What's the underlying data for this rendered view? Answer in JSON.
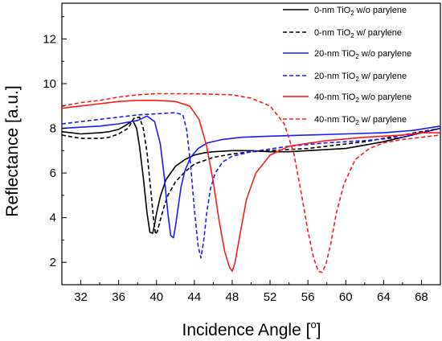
{
  "chart_data": {
    "type": "line",
    "xlabel": "Incidence Angle [",
    "xlabel_unit": "o",
    "xlabel_close": "]",
    "ylabel": "Reflectance [a.u.]",
    "xlim": [
      30,
      70
    ],
    "ylim": [
      1,
      13.6
    ],
    "xticks": [
      32,
      36,
      40,
      44,
      48,
      52,
      56,
      60,
      64,
      68
    ],
    "yticks": [
      2,
      4,
      6,
      8,
      10,
      12
    ],
    "grid": false,
    "legend_position": "top-right",
    "series": [
      {
        "label_pre": "0-nm TiO",
        "label_sub": "2",
        "label_post": " w/o parylene",
        "color": "#000000",
        "dash": "solid",
        "x": [
          30,
          32,
          34,
          35,
          36,
          36.8,
          37.5,
          37.9,
          38.2,
          38.6,
          39.0,
          39.3,
          39.6,
          39.8,
          40.0,
          40.4,
          41.0,
          42.0,
          43.0,
          44.0,
          45.0,
          46.0,
          48.0,
          50.0,
          52.0,
          54.0,
          56.0,
          58.0,
          60.0,
          62.0,
          64.0,
          66.0,
          68.0,
          70.0
        ],
        "y": [
          7.85,
          7.75,
          7.8,
          7.85,
          7.95,
          8.15,
          8.35,
          8.0,
          7.2,
          5.8,
          4.2,
          3.35,
          3.3,
          3.7,
          4.2,
          4.95,
          5.7,
          6.3,
          6.6,
          6.8,
          6.9,
          6.95,
          7.0,
          7.0,
          6.95,
          6.95,
          7.0,
          7.05,
          7.1,
          7.25,
          7.4,
          7.6,
          7.8,
          8.0
        ]
      },
      {
        "label_pre": "0-nm TiO",
        "label_sub": "2",
        "label_post": " w/ parylene",
        "color": "#000000",
        "dash": "dashed",
        "x": [
          30,
          32,
          34,
          35,
          36,
          37.0,
          37.6,
          38.2,
          38.6,
          39.0,
          39.4,
          39.7,
          39.9,
          40.1,
          40.4,
          40.8,
          41.2,
          42.0,
          43.0,
          44.0,
          46.0,
          48.0,
          50.0,
          52.0,
          54.0,
          56.0,
          58.0,
          60.0,
          62.0,
          64.0,
          66.0,
          68.0,
          70.0
        ],
        "y": [
          7.7,
          7.55,
          7.55,
          7.6,
          7.75,
          8.0,
          8.45,
          8.5,
          8.0,
          6.9,
          5.2,
          3.9,
          3.25,
          3.4,
          3.9,
          4.5,
          5.0,
          5.6,
          6.05,
          6.4,
          6.7,
          6.85,
          6.95,
          7.0,
          7.05,
          7.1,
          7.2,
          7.3,
          7.4,
          7.55,
          7.7,
          7.85,
          8.0
        ]
      },
      {
        "label_pre": "20-nm TiO",
        "label_sub": "2",
        "label_post": " w/o parylene",
        "color": "#1a1aff",
        "dash": "solid",
        "x": [
          30,
          32,
          34,
          36,
          38,
          39.0,
          39.8,
          40.4,
          40.8,
          41.2,
          41.5,
          41.8,
          42.0,
          42.3,
          42.6,
          43.0,
          43.6,
          44.4,
          45.4,
          47.0,
          49.0,
          52.0,
          56.0,
          60.0,
          64.0,
          67.0,
          70.0
        ],
        "y": [
          8.0,
          8.05,
          8.1,
          8.2,
          8.35,
          8.55,
          8.3,
          7.3,
          5.9,
          4.2,
          3.2,
          3.1,
          3.6,
          4.5,
          5.4,
          6.1,
          6.7,
          7.1,
          7.35,
          7.5,
          7.6,
          7.65,
          7.7,
          7.75,
          7.8,
          7.9,
          8.1
        ]
      },
      {
        "label_pre": "20-nm TiO",
        "label_sub": "2",
        "label_post": " w/ parylene",
        "color": "#1a1aff",
        "dash": "dashed",
        "x": [
          30,
          32,
          34,
          36,
          38,
          40,
          42,
          42.8,
          43.2,
          43.6,
          44.0,
          44.4,
          44.7,
          45.0,
          45.3,
          45.7,
          46.2,
          47.0,
          48.0,
          50.0,
          54.0,
          58.0,
          62.0,
          66.0,
          70.0
        ],
        "y": [
          8.2,
          8.3,
          8.4,
          8.5,
          8.6,
          8.65,
          8.7,
          8.6,
          7.9,
          6.4,
          4.4,
          2.7,
          2.2,
          3.0,
          4.2,
          5.3,
          6.0,
          6.5,
          6.75,
          6.95,
          7.2,
          7.35,
          7.45,
          7.6,
          8.0
        ]
      },
      {
        "label_pre": "40-nm TiO",
        "label_sub": "2",
        "label_post": " w/o parylene",
        "color": "#ff1a1a",
        "dash": "solid",
        "x": [
          30,
          32,
          34,
          36,
          38,
          40,
          42,
          43.5,
          44.5,
          45.3,
          46.0,
          46.6,
          47.2,
          47.7,
          48.0,
          48.3,
          48.8,
          49.5,
          50.5,
          52.0,
          54.0,
          58.0,
          62.0,
          66.0,
          68.0,
          70.0
        ],
        "y": [
          8.9,
          9.0,
          9.1,
          9.2,
          9.25,
          9.25,
          9.2,
          9.0,
          8.4,
          7.2,
          5.6,
          3.9,
          2.5,
          1.8,
          1.6,
          2.0,
          3.2,
          4.8,
          6.0,
          6.8,
          7.2,
          7.45,
          7.6,
          7.7,
          7.8,
          7.8
        ]
      },
      {
        "label_pre": "40-nm TiO",
        "label_sub": "2",
        "label_post": " w/ parylene",
        "color": "#ff1a1a",
        "dash": "dashed",
        "x": [
          30,
          32,
          34,
          36,
          38,
          40,
          44,
          48,
          50,
          52,
          53.5,
          54.5,
          55.3,
          56.0,
          56.6,
          57.1,
          57.5,
          57.9,
          58.4,
          59.0,
          59.8,
          61.0,
          62.5,
          64.0,
          66.0,
          68.0,
          70.0
        ],
        "y": [
          9.0,
          9.15,
          9.25,
          9.4,
          9.5,
          9.55,
          9.55,
          9.5,
          9.35,
          9.0,
          8.2,
          6.9,
          5.1,
          3.4,
          2.2,
          1.6,
          1.55,
          1.9,
          2.8,
          4.2,
          5.5,
          6.6,
          7.1,
          7.35,
          7.5,
          7.6,
          7.7
        ]
      }
    ]
  }
}
